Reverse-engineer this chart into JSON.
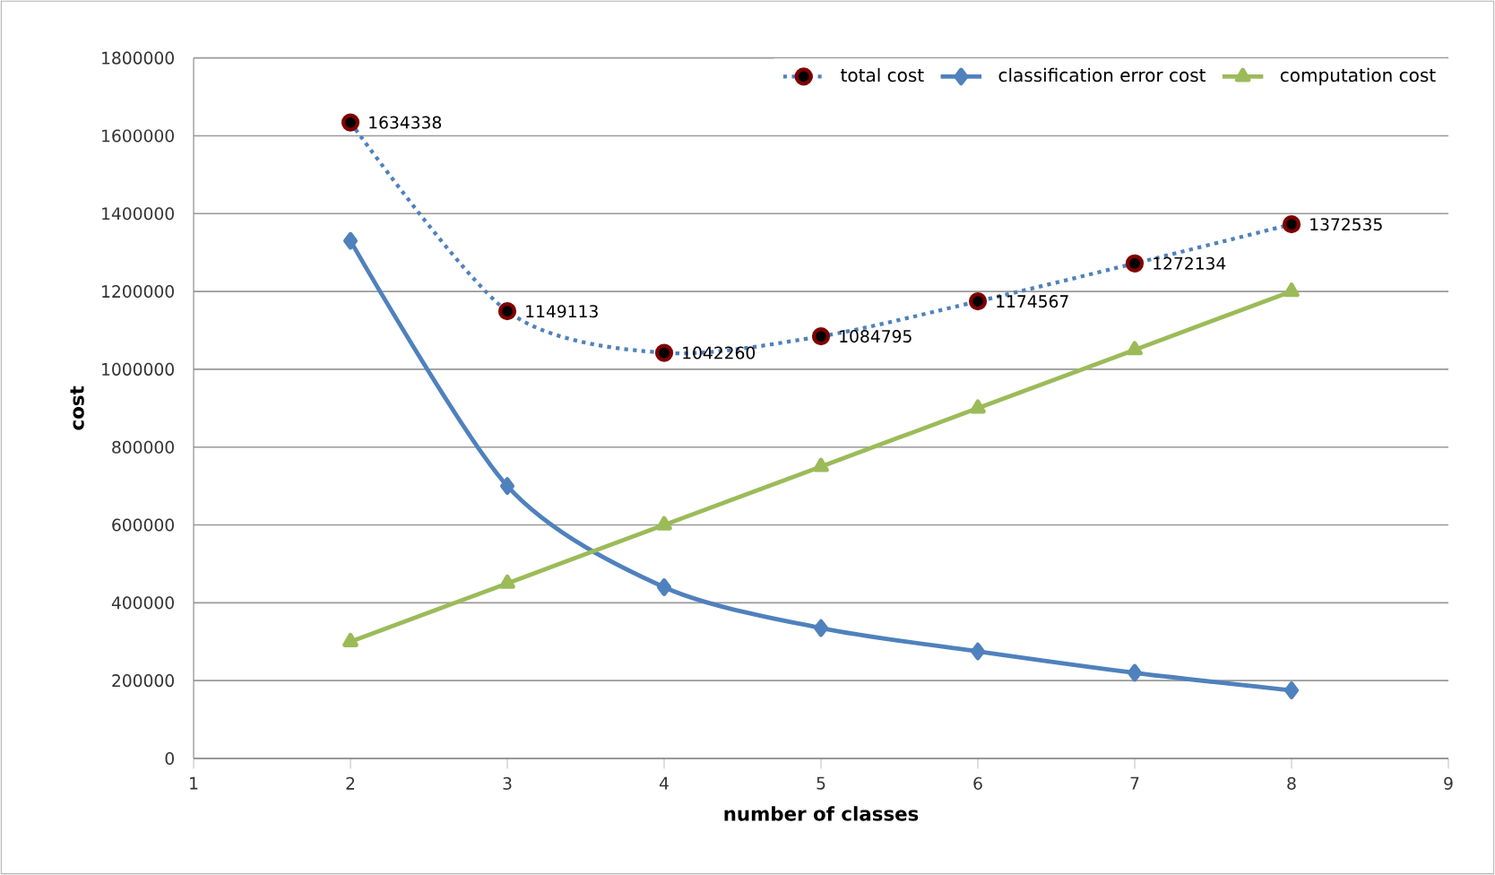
{
  "chart_data": {
    "type": "line",
    "xlabel": "number of classes",
    "ylabel": "cost",
    "x": [
      2,
      3,
      4,
      5,
      6,
      7,
      8
    ],
    "xlim": [
      1,
      9
    ],
    "xticks": [
      1,
      2,
      3,
      4,
      5,
      6,
      7,
      8,
      9
    ],
    "ylim": [
      0,
      1800000
    ],
    "yticks": [
      0,
      200000,
      400000,
      600000,
      800000,
      1000000,
      1200000,
      1400000,
      1600000,
      1800000
    ],
    "grid": "y",
    "legend": "top right",
    "series": [
      {
        "name": "total cost",
        "color": "#4f81bd",
        "marker": "circle",
        "line_style": "dotted",
        "values": [
          1634338,
          1149113,
          1042260,
          1084795,
          1174567,
          1272134,
          1372535
        ],
        "value_labels": [
          "1634338",
          "1149113",
          "1042260",
          "1084795",
          "1174567",
          "1272134",
          "1372535"
        ]
      },
      {
        "name": "classification error cost",
        "color": "#4f81bd",
        "marker": "diamond",
        "line_style": "solid",
        "values": [
          1330000,
          700000,
          440000,
          335000,
          275000,
          220000,
          175000
        ]
      },
      {
        "name": "computation cost",
        "color": "#9bbb59",
        "marker": "triangle",
        "line_style": "solid",
        "values": [
          300000,
          450000,
          600000,
          750000,
          900000,
          1050000,
          1200000
        ]
      }
    ]
  }
}
